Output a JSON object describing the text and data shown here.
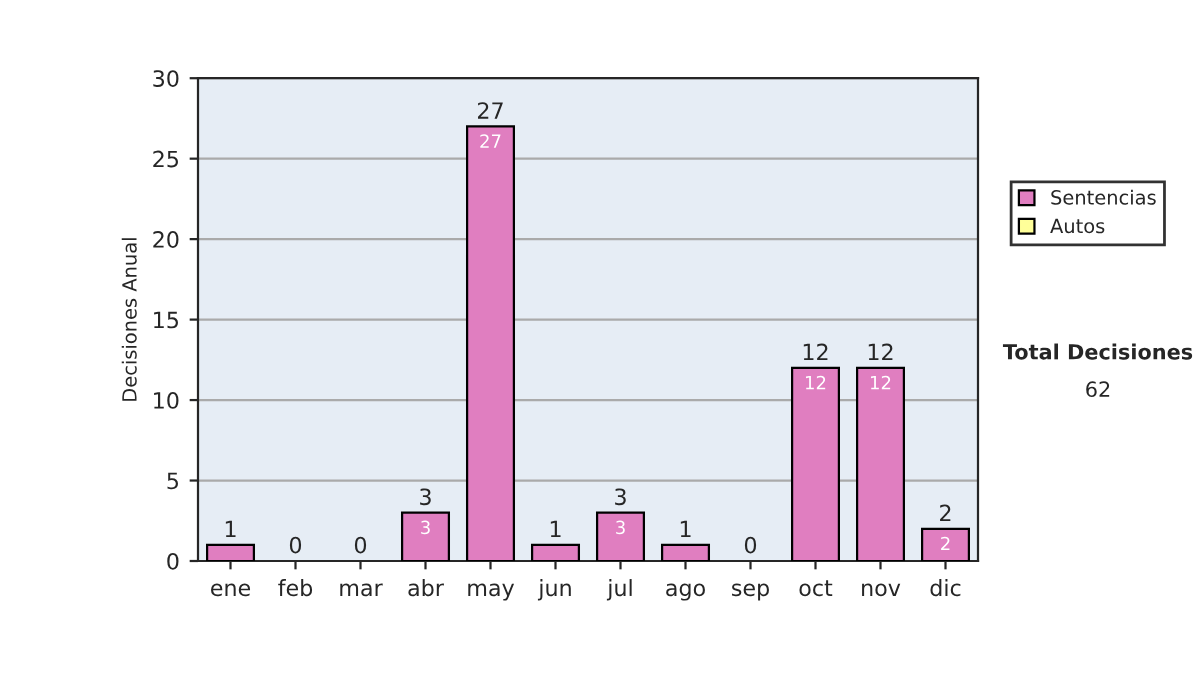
{
  "chart_data": {
    "type": "bar",
    "stacked": true,
    "ylabel": "Decisiones Anual",
    "categories": [
      "ene",
      "feb",
      "mar",
      "abr",
      "may",
      "jun",
      "jul",
      "ago",
      "sep",
      "oct",
      "nov",
      "dic"
    ],
    "series": [
      {
        "name": "Sentencias",
        "color": "#e07ec0",
        "values": [
          1,
          0,
          0,
          3,
          27,
          1,
          3,
          1,
          0,
          12,
          12,
          2
        ],
        "value_labels": [
          null,
          null,
          null,
          "3",
          "27",
          null,
          "3",
          null,
          null,
          "12",
          "12",
          "2"
        ]
      },
      {
        "name": "Autos",
        "color": "#ffff99",
        "values": [
          0,
          0,
          0,
          0,
          0,
          0,
          0,
          0,
          0,
          0,
          0,
          0
        ]
      }
    ],
    "totals": [
      "1",
      "0",
      "0",
      "3",
      "27",
      "1",
      "3",
      "1",
      "0",
      "12",
      "12",
      "2"
    ],
    "ylim": [
      0,
      30
    ],
    "yticks": [
      0,
      5,
      10,
      15,
      20,
      25,
      30
    ],
    "grid": "y",
    "legend": "right",
    "annotations": [
      "Total Decisiones",
      "62"
    ]
  }
}
